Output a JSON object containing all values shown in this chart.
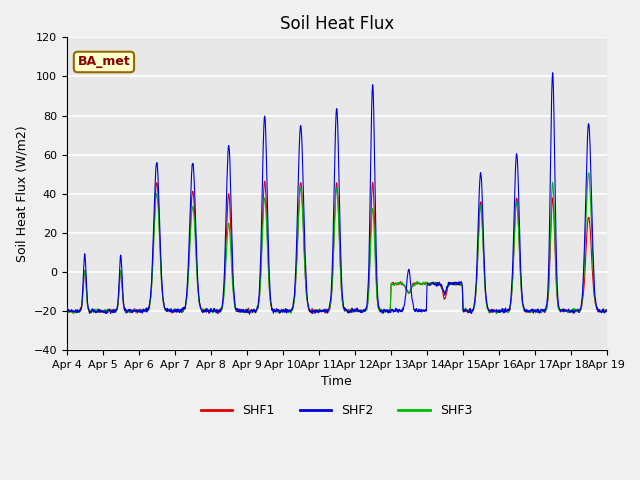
{
  "title": "Soil Heat Flux",
  "ylabel": "Soil Heat Flux (W/m2)",
  "xlabel": "Time",
  "ylim": [
    -40,
    120
  ],
  "date_labels": [
    "Apr 4",
    "Apr 5",
    "Apr 6",
    "Apr 7",
    "Apr 8",
    "Apr 9",
    "Apr 10",
    "Apr 11",
    "Apr 12",
    "Apr 13",
    "Apr 14",
    "Apr 15",
    "Apr 16",
    "Apr 17",
    "Apr 18",
    "Apr 19"
  ],
  "legend_labels": [
    "SHF1",
    "SHF2",
    "SHF3"
  ],
  "line_colors": [
    "#dd0000",
    "#0000dd",
    "#00bb00"
  ],
  "annotation_text": "BA_met",
  "annotation_bg": "#ffffcc",
  "annotation_border": "#996600",
  "plot_bg": "#e8e8e8",
  "fig_bg": "#f0f0f0",
  "grid_color": "#ffffff",
  "title_fontsize": 12,
  "tick_fontsize": 8,
  "label_fontsize": 9
}
